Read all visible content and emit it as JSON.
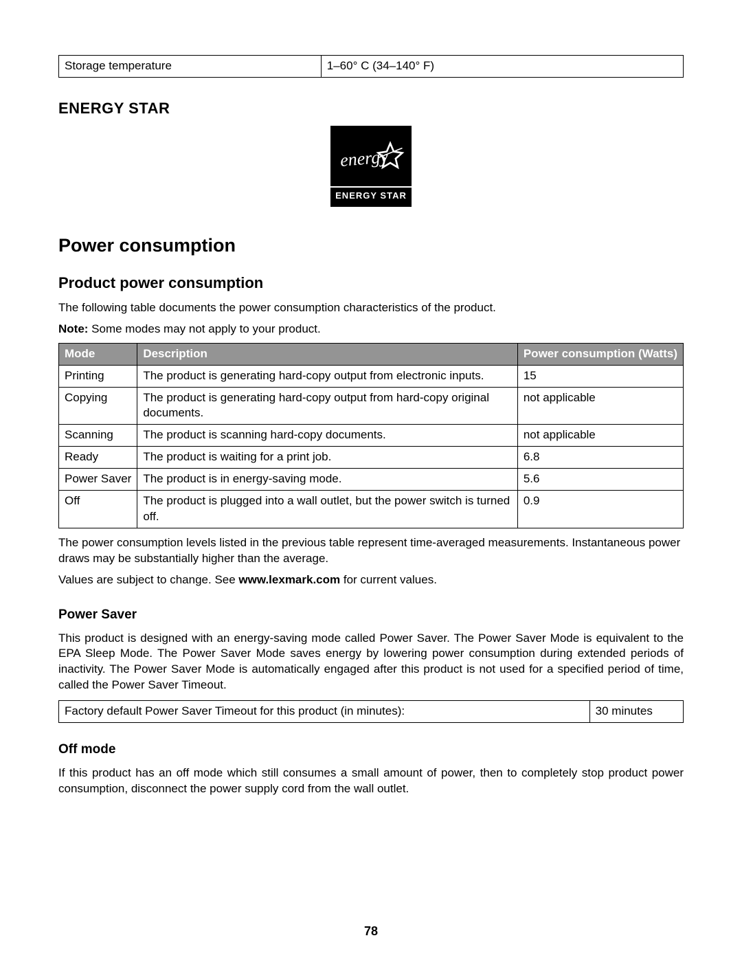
{
  "storage_table": {
    "rows": [
      {
        "label": "Storage temperature",
        "value": "1–60° C (34–140° F)"
      }
    ]
  },
  "headings": {
    "energy_star": "ENERGY STAR",
    "power_consumption": "Power consumption",
    "product_power_consumption": "Product power consumption",
    "power_saver": "Power Saver",
    "off_mode": "Off mode"
  },
  "logo": {
    "script_text": "energy",
    "bar_text": "ENERGY STAR"
  },
  "paragraphs": {
    "p1": "The following table documents the power consumption characteristics of the product.",
    "note_bold": "Note:",
    "note_rest": " Some modes may not apply to your product.",
    "p_after_table": "The power consumption levels listed in the previous table represent time-averaged measurements. Instantaneous power draws may be substantially higher than the average.",
    "p_values_pre": "Values are subject to change. See ",
    "p_values_link": "www.lexmark.com",
    "p_values_post": " for current values.",
    "power_saver_text": "This product is designed with an energy-saving mode called Power Saver. The Power Saver Mode is equivalent to the EPA Sleep Mode. The Power Saver Mode saves energy by lowering power consumption during extended periods of inactivity. The Power Saver Mode is automatically engaged after this product is not used for a specified period of time, called the Power Saver Timeout.",
    "off_mode_text": "If this product has an off mode which still consumes a small amount of power, then to completely stop product power consumption, disconnect the power supply cord from the wall outlet."
  },
  "power_table": {
    "header_bg": "#949494",
    "header_fg": "#ffffff",
    "headers": [
      "Mode",
      "Description",
      "Power consumption (Watts)"
    ],
    "rows": [
      {
        "mode": "Printing",
        "desc": "The product is generating hard-copy output from electronic inputs.",
        "watts": "15"
      },
      {
        "mode": "Copying",
        "desc": "The product is generating hard-copy output from hard-copy original documents.",
        "watts": "not applicable"
      },
      {
        "mode": "Scanning",
        "desc": "The product is scanning hard-copy documents.",
        "watts": "not applicable"
      },
      {
        "mode": "Ready",
        "desc": "The product is waiting for a print job.",
        "watts": "6.8"
      },
      {
        "mode": "Power Saver",
        "desc": "The product is in energy-saving mode.",
        "watts": "5.6"
      },
      {
        "mode": "Off",
        "desc": "The product is plugged into a wall outlet, but the power switch is turned off.",
        "watts": "0.9"
      }
    ]
  },
  "timeout_table": {
    "label": "Factory default Power Saver Timeout for this product (in minutes):",
    "value": "30 minutes"
  },
  "page_number": "78"
}
